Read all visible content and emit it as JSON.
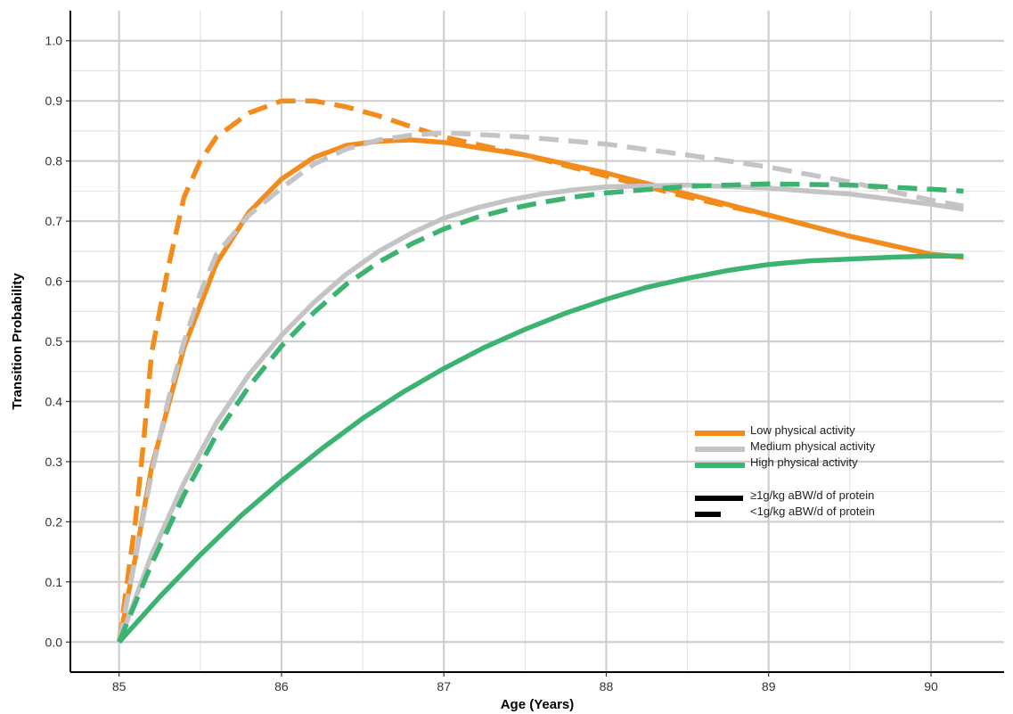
{
  "chart_data": {
    "type": "line",
    "xlabel": "Age (Years)",
    "ylabel": "Transition Probability",
    "xlim": [
      84.7,
      90.45
    ],
    "ylim": [
      -0.05,
      1.05
    ],
    "x_ticks": [
      85,
      86,
      87,
      88,
      89,
      90
    ],
    "x_tick_labels": [
      "85",
      "86",
      "87",
      "88",
      "89",
      "90"
    ],
    "y_ticks": [
      0,
      0.1,
      0.2,
      0.3,
      0.4,
      0.5,
      0.6,
      0.7,
      0.8,
      0.9,
      1.0
    ],
    "y_tick_labels": [
      "0.0",
      "0.1",
      "0.2",
      "0.3",
      "0.4",
      "0.5",
      "0.6",
      "0.7",
      "0.8",
      "0.9",
      "1.0"
    ],
    "grid": true,
    "legend_position": "right",
    "series": [
      {
        "name": "Low physical activity",
        "protein": "≥1g/kg aBW/d of protein",
        "color": "#F28C1C",
        "dash": "solid",
        "x": [
          85,
          85.1,
          85.2,
          85.4,
          85.6,
          85.8,
          86.0,
          86.2,
          86.4,
          86.6,
          86.8,
          87.0,
          87.5,
          88.0,
          88.5,
          89.0,
          89.5,
          90.0,
          90.2
        ],
        "values": [
          0,
          0.14,
          0.29,
          0.49,
          0.63,
          0.715,
          0.77,
          0.806,
          0.826,
          0.833,
          0.835,
          0.831,
          0.81,
          0.78,
          0.745,
          0.71,
          0.675,
          0.645,
          0.64
        ]
      },
      {
        "name": "Low physical activity",
        "protein": "<1g/kg aBW/d of protein",
        "color": "#F28C1C",
        "dash": "dashed",
        "x": [
          85,
          85.05,
          85.1,
          85.15,
          85.2,
          85.3,
          85.4,
          85.5,
          85.6,
          85.8,
          86.0,
          86.2,
          86.4,
          86.6,
          86.8,
          87.0,
          87.5,
          88.0,
          88.5,
          89.0,
          89.5,
          90.0,
          90.2
        ],
        "values": [
          0,
          0.1,
          0.2,
          0.33,
          0.48,
          0.62,
          0.74,
          0.8,
          0.84,
          0.88,
          0.9,
          0.9,
          0.89,
          0.875,
          0.857,
          0.84,
          0.81,
          0.775,
          0.74,
          0.71,
          0.675,
          0.645,
          0.64
        ]
      },
      {
        "name": "Medium physical activity",
        "protein": "≥1g/kg aBW/d of protein",
        "color": "#C4C4C4",
        "dash": "solid",
        "x": [
          85,
          85.2,
          85.4,
          85.6,
          85.8,
          86.0,
          86.2,
          86.4,
          86.6,
          86.8,
          87.0,
          87.2,
          87.4,
          87.6,
          87.8,
          88.0,
          88.5,
          89.0,
          89.5,
          90.0,
          90.2
        ],
        "values": [
          0,
          0.145,
          0.265,
          0.365,
          0.445,
          0.51,
          0.565,
          0.612,
          0.65,
          0.68,
          0.705,
          0.722,
          0.735,
          0.745,
          0.752,
          0.757,
          0.76,
          0.755,
          0.745,
          0.728,
          0.72
        ]
      },
      {
        "name": "Medium physical activity",
        "protein": "<1g/kg aBW/d of protein",
        "color": "#C4C4C4",
        "dash": "dashed",
        "x": [
          85,
          85.1,
          85.2,
          85.3,
          85.4,
          85.5,
          85.6,
          85.8,
          86.0,
          86.2,
          86.4,
          86.6,
          86.8,
          87.0,
          87.5,
          88.0,
          88.5,
          89.0,
          89.5,
          90.0,
          90.2
        ],
        "values": [
          0,
          0.14,
          0.28,
          0.4,
          0.5,
          0.58,
          0.645,
          0.71,
          0.755,
          0.795,
          0.82,
          0.835,
          0.843,
          0.847,
          0.84,
          0.828,
          0.81,
          0.79,
          0.765,
          0.735,
          0.725
        ]
      },
      {
        "name": "High physical activity",
        "protein": "≥1g/kg aBW/d of protein",
        "color": "#3CB371",
        "dash": "solid",
        "x": [
          85,
          85.25,
          85.5,
          85.75,
          86.0,
          86.25,
          86.5,
          86.75,
          87.0,
          87.25,
          87.5,
          87.75,
          88.0,
          88.25,
          88.5,
          88.75,
          89.0,
          89.25,
          89.5,
          89.75,
          90.0,
          90.2
        ],
        "values": [
          0,
          0.075,
          0.145,
          0.21,
          0.268,
          0.322,
          0.372,
          0.416,
          0.455,
          0.49,
          0.52,
          0.547,
          0.57,
          0.59,
          0.605,
          0.618,
          0.628,
          0.634,
          0.637,
          0.64,
          0.642,
          0.642
        ]
      },
      {
        "name": "High physical activity",
        "protein": "<1g/kg aBW/d of protein",
        "color": "#3CB371",
        "dash": "dashed",
        "x": [
          85,
          85.2,
          85.4,
          85.6,
          85.8,
          86.0,
          86.2,
          86.4,
          86.6,
          86.8,
          87.0,
          87.2,
          87.4,
          87.6,
          87.8,
          88.0,
          88.5,
          89.0,
          89.5,
          90.0,
          90.2
        ],
        "values": [
          0,
          0.13,
          0.245,
          0.345,
          0.425,
          0.492,
          0.548,
          0.595,
          0.632,
          0.662,
          0.687,
          0.706,
          0.72,
          0.731,
          0.74,
          0.747,
          0.758,
          0.762,
          0.76,
          0.753,
          0.75
        ]
      }
    ],
    "legend": {
      "activity": [
        {
          "label": "Low physical activity",
          "color": "#F28C1C"
        },
        {
          "label": "Medium physical activity",
          "color": "#C4C4C4"
        },
        {
          "label": "High physical activity",
          "color": "#3CB371"
        }
      ],
      "protein": [
        {
          "label": "≥1g/kg aBW/d of protein",
          "dash": "solid"
        },
        {
          "label": "<1g/kg aBW/d of protein",
          "dash": "dashed"
        }
      ]
    }
  }
}
